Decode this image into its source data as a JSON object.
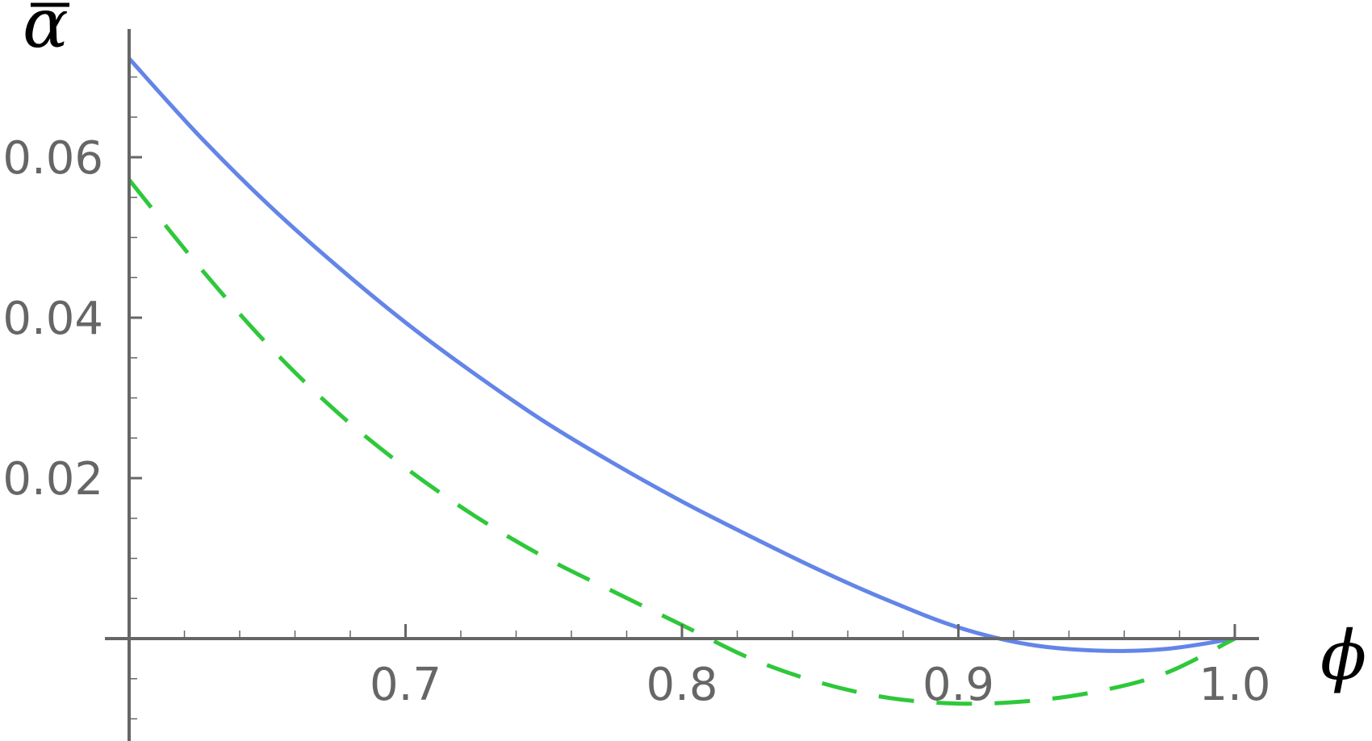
{
  "chart_data": {
    "type": "line",
    "xlabel": "ϕ",
    "ylabel": "α",
    "xlim": [
      0.6,
      1.0
    ],
    "ylim": [
      -0.013,
      0.075
    ],
    "x_ticks": [
      {
        "value": 0.7,
        "label": "0.7"
      },
      {
        "value": 0.8,
        "label": "0.8"
      },
      {
        "value": 0.9,
        "label": "0.9"
      },
      {
        "value": 1.0,
        "label": "1.0"
      }
    ],
    "y_ticks": [
      {
        "value": 0.02,
        "label": "0.02"
      },
      {
        "value": 0.04,
        "label": "0.04"
      },
      {
        "value": 0.06,
        "label": "0.06"
      }
    ],
    "grid": false,
    "legend": "none",
    "series": [
      {
        "style": "solid",
        "color": "#6385e8",
        "x": [
          0.6,
          0.625,
          0.65,
          0.675,
          0.7,
          0.725,
          0.75,
          0.775,
          0.8,
          0.825,
          0.85,
          0.875,
          0.9,
          0.925,
          0.95,
          0.975,
          1.0
        ],
        "y": [
          0.0723,
          0.0628,
          0.0542,
          0.0465,
          0.0394,
          0.033,
          0.0271,
          0.0219,
          0.0171,
          0.0127,
          0.0085,
          0.0047,
          0.0014,
          -0.0007,
          -0.0015,
          -0.0013,
          0.0
        ]
      },
      {
        "style": "dashed",
        "color": "#2ec83a",
        "x": [
          0.6,
          0.625,
          0.65,
          0.675,
          0.7,
          0.725,
          0.75,
          0.775,
          0.8,
          0.825,
          0.85,
          0.875,
          0.9,
          0.925,
          0.95,
          0.975,
          1.0
        ],
        "y": [
          0.0572,
          0.0465,
          0.0367,
          0.0283,
          0.0213,
          0.0153,
          0.0102,
          0.0059,
          0.0017,
          -0.0025,
          -0.0055,
          -0.0074,
          -0.0081,
          -0.0078,
          -0.0066,
          -0.0043,
          0.0
        ]
      }
    ]
  }
}
